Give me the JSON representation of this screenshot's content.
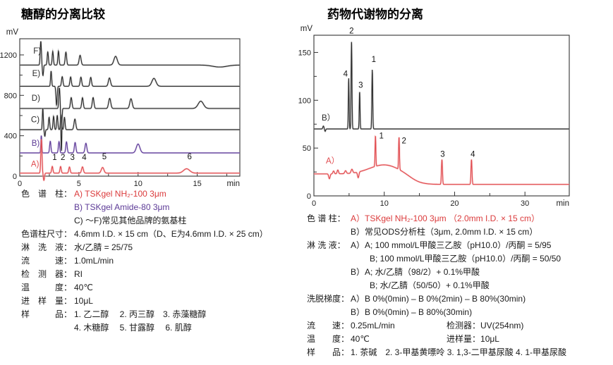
{
  "colors": {
    "red": "#db3b3c",
    "purple": "#5c3a96",
    "black": "#2b2b2b",
    "trace_red": "#e04a4e",
    "halo_red": "#f5b5b6",
    "halo_purple": "#cdbde4",
    "halo_black": "#b9b9b9",
    "axis": "#333333"
  },
  "left": {
    "title": "糖醇的分离比较",
    "legend_rows": [
      {
        "label": "色　谱　柱：",
        "value": "A) TSKgel NH₂-100 3μm",
        "color": "red"
      },
      {
        "label": "",
        "value": "B) TSKgel Amide-80 3μm",
        "color": "purple"
      },
      {
        "label": "",
        "value": "C) ～F)常见其他品牌的氨基柱"
      },
      {
        "label": "色谱柱尺寸：",
        "value": "4.6mm I.D. × 15 cm（D、E为4.6mm I.D. × 25 cm）"
      },
      {
        "label": "淋　洗　液：",
        "value": "水/乙腈 = 25/75"
      },
      {
        "label": "流　　　速：",
        "value": "1.0mL/min"
      },
      {
        "label": "检　测　器：",
        "value": "RI"
      },
      {
        "label": "温　　　度：",
        "value": "40℃"
      },
      {
        "label": "进　样　量：",
        "value": "10μL"
      },
      {
        "label": "样　　　品：",
        "value": "1. 乙二醇　 2. 丙三醇　3. 赤藻糖醇"
      },
      {
        "label": "",
        "value": "4. 木糖醇　 5. 甘露醇　 6. 肌醇"
      }
    ]
  },
  "right": {
    "title": "药物代谢物的分离",
    "legend_rows": [
      {
        "label": "色 谱 柱：",
        "value": "A）TSKgel NH₂-100 3μm （2.0mm I.D. × 15 cm）",
        "color": "red"
      },
      {
        "label": "",
        "value": "B）常见ODS分析柱（3μm, 2.0mm I.D. × 15 cm）"
      },
      {
        "label": "淋 洗 液：",
        "value": "A）A; 100 mmol/L甲酸三乙胺（pH10.0）/丙酮 = 5/95"
      },
      {
        "label": "",
        "value": "B; 100 mmol/L甲酸三乙胺（pH10.0）/丙酮 = 50/50",
        "indent": 27
      },
      {
        "label": "",
        "value": "B）A; 水/乙腈（98/2）+ 0.1%甲酸"
      },
      {
        "label": "",
        "value": "B; 水/乙腈（50/50）+ 0.1%甲酸",
        "indent": 27
      },
      {
        "label": "洗脱梯度：",
        "value": "A）B 0%(0min) – B 0%(2min) – B 80%(30min)"
      },
      {
        "label": "",
        "value": "B）B 0%(0min) – B 80%(30min)"
      },
      {
        "label": "流　　速：",
        "value": "0.25mL/min",
        "label2": "检测器：",
        "value2": "UV(254nm)"
      },
      {
        "label": "温　　度：",
        "value": "40℃",
        "label2": "进样量：",
        "value2": "10μL"
      },
      {
        "label": "样　　品：",
        "value": "1. 茶碱　2. 3-甲基黄嘌呤 3. 1,3-二甲基尿酸 4. 1-甲基尿酸"
      }
    ]
  },
  "chart_data": [
    {
      "id": "left",
      "type": "line",
      "title": "糖醇的分离比较",
      "xlabel": "min",
      "ylabel": "mV",
      "xlim": [
        0,
        18.6
      ],
      "ylim": [
        0,
        1360
      ],
      "xticks_major": [
        0,
        5,
        10,
        15
      ],
      "xticks_minor": [
        2.5,
        7.5,
        12.5,
        17.5
      ],
      "yticks_major": [
        0,
        400,
        800,
        1200
      ],
      "yticks_minor": [
        200,
        600,
        1000
      ],
      "grid": false,
      "traces": [
        {
          "name": "F",
          "color": "black",
          "halo": "halo_black",
          "baseline": 1100,
          "peaks": [
            [
              1.78,
              235,
              0.05
            ],
            [
              1.96,
              -105,
              0.045
            ],
            [
              2.37,
              130,
              0.05
            ],
            [
              2.79,
              135,
              0.05
            ],
            [
              3.27,
              138,
              0.05
            ],
            [
              3.9,
              128,
              0.06
            ],
            [
              5.1,
              96,
              0.08
            ],
            [
              8.1,
              86,
              0.14
            ],
            [
              16.9,
              -20,
              0.6
            ]
          ],
          "label": {
            "text": "F)",
            "t": 1.15,
            "mv": 1215
          }
        },
        {
          "name": "E",
          "color": "black",
          "halo": "halo_black",
          "baseline": 890,
          "peaks": [
            [
              2.65,
              148,
              0.045
            ],
            [
              3.11,
              -185,
              0.05
            ],
            [
              3.59,
              95,
              0.06
            ],
            [
              4.3,
              92,
              0.06
            ],
            [
              5.17,
              90,
              0.065
            ],
            [
              6.0,
              88,
              0.065
            ],
            [
              7.58,
              82,
              0.09
            ],
            [
              11.34,
              78,
              0.17
            ]
          ],
          "label": {
            "text": "E)",
            "t": 1.05,
            "mv": 990
          }
        },
        {
          "name": "D",
          "color": "black",
          "halo": "halo_black",
          "baseline": 670,
          "peaks": [
            [
              3.35,
              205,
              0.05
            ],
            [
              3.52,
              -420,
              0.04
            ],
            [
              4.35,
              108,
              0.065
            ],
            [
              5.3,
              106,
              0.065
            ],
            [
              6.2,
              108,
              0.07
            ],
            [
              7.6,
              100,
              0.09
            ],
            [
              9.4,
              96,
              0.1
            ],
            [
              15.3,
              72,
              0.22
            ]
          ],
          "label": {
            "text": "D)",
            "t": 1.0,
            "mv": 745
          }
        },
        {
          "name": "C",
          "color": "black",
          "halo": "halo_black",
          "baseline": 460,
          "peaks": [
            [
              1.95,
              212,
              0.04
            ],
            [
              2.12,
              -65,
              0.04
            ],
            [
              2.48,
              122,
              0.05
            ],
            [
              2.86,
              133,
              0.05
            ],
            [
              3.17,
              140,
              0.05
            ],
            [
              3.49,
              145,
              0.05
            ],
            [
              3.78,
              122,
              0.05
            ],
            [
              4.66,
              105,
              0.075
            ]
          ],
          "label": {
            "text": "C)",
            "t": 0.95,
            "mv": 535
          }
        },
        {
          "name": "B",
          "color": "purple",
          "halo": "halo_purple",
          "baseline": 230,
          "peaks": [
            [
              1.82,
              172,
              0.04
            ],
            [
              2.58,
              115,
              0.055
            ],
            [
              3.32,
              112,
              0.055
            ],
            [
              3.95,
              110,
              0.06
            ],
            [
              4.68,
              103,
              0.065
            ],
            [
              5.59,
              96,
              0.075
            ],
            [
              10.0,
              88,
              0.15
            ]
          ],
          "label": {
            "text": "B)",
            "t": 1.0,
            "mv": 300
          }
        },
        {
          "name": "A",
          "color": "trace_red",
          "halo": "halo_red",
          "baseline": 30,
          "peaks": [
            [
              1.83,
              335,
              0.05
            ],
            [
              2.04,
              -72,
              0.05
            ],
            [
              2.75,
              66,
              0.055
            ],
            [
              3.45,
              66,
              0.055
            ],
            [
              4.2,
              61,
              0.06
            ],
            [
              5.3,
              62,
              0.075
            ],
            [
              7.0,
              56,
              0.11
            ],
            [
              14.1,
              43,
              0.26
            ]
          ],
          "label": {
            "text": "A)",
            "t": 0.95,
            "mv": 95
          },
          "peak_labels": [
            {
              "text": "1",
              "t": 2.95,
              "mv": 160
            },
            {
              "text": "2",
              "t": 3.65,
              "mv": 160
            },
            {
              "text": "3",
              "t": 4.45,
              "mv": 160
            },
            {
              "text": "4",
              "t": 5.45,
              "mv": 160
            },
            {
              "text": "5",
              "t": 7.15,
              "mv": 168
            },
            {
              "text": "6",
              "t": 14.35,
              "mv": 168
            }
          ]
        }
      ]
    },
    {
      "id": "right",
      "type": "line",
      "title": "药物代谢物的分离",
      "xlabel": "min",
      "ylabel": "mV",
      "xlim": [
        0,
        36.3
      ],
      "ylim": [
        0,
        168
      ],
      "xticks_major": [
        0,
        10,
        20,
        30
      ],
      "xticks_minor": [
        5,
        15,
        25
      ],
      "yticks_major": [
        0,
        50,
        100,
        150
      ],
      "yticks_minor": [
        25,
        75,
        125
      ],
      "grid": false,
      "traces": [
        {
          "name": "B",
          "color": "black",
          "halo": "halo_black",
          "baseline": 70,
          "peaks": [
            [
              1.35,
              3,
              0.08
            ],
            [
              1.6,
              -2.5,
              0.07
            ],
            [
              4.95,
              53,
              0.055
            ],
            [
              5.35,
              92,
              0.06
            ],
            [
              6.5,
              39,
              0.055
            ],
            [
              8.3,
              62,
              0.06
            ]
          ],
          "label": {
            "text": "B）",
            "t": 1.1,
            "mv": 79
          },
          "peak_labels": [
            {
              "text": "4",
              "t": 4.5,
              "mv": 125
            },
            {
              "text": "2",
              "t": 5.35,
              "mv": 170
            },
            {
              "text": "3",
              "t": 6.65,
              "mv": 113
            },
            {
              "text": "1",
              "t": 8.5,
              "mv": 140
            }
          ]
        },
        {
          "name": "A",
          "color": "trace_red",
          "halo": "halo_red",
          "baseline": 23,
          "drift": {
            "drop": 11,
            "mid": 13.8,
            "k": 0.8
          },
          "peaks": [
            [
              2.2,
              -5,
              0.1
            ],
            [
              2.8,
              3,
              0.1
            ],
            [
              3.4,
              4,
              0.1
            ],
            [
              4.5,
              3,
              0.12
            ],
            [
              5.4,
              4,
              0.12
            ],
            [
              6.3,
              -6,
              0.1
            ],
            [
              10.0,
              9.5,
              2.1
            ],
            [
              8.75,
              32,
              0.055
            ],
            [
              12.1,
              34,
              0.06
            ],
            [
              18.2,
              26,
              0.07
            ],
            [
              22.4,
              26,
              0.07
            ]
          ],
          "label": {
            "text": "A）",
            "t": 1.7,
            "mv": 34
          },
          "peak_labels": [
            {
              "text": "1",
              "t": 9.6,
              "mv": 60
            },
            {
              "text": "2",
              "t": 12.8,
              "mv": 55
            },
            {
              "text": "3",
              "t": 18.3,
              "mv": 41
            },
            {
              "text": "4",
              "t": 22.6,
              "mv": 41
            }
          ]
        }
      ]
    }
  ]
}
